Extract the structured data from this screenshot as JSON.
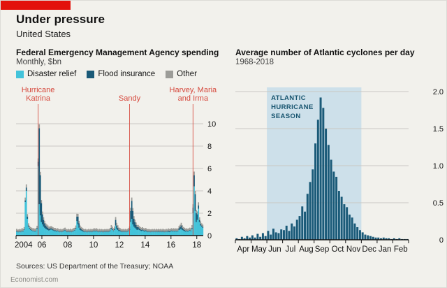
{
  "colors": {
    "background": "#f2f1ec",
    "brand_red": "#e3120b"
  },
  "header": {
    "title": "Under pressure",
    "subtitle": "United States"
  },
  "footer": {
    "sources": "Sources: US Department of the Treasury; NOAA",
    "site": "Economist.com"
  },
  "chart_data": [
    {
      "type": "bar",
      "stacked": true,
      "title": "Federal Emergency Management Agency spending",
      "subtitle": "Monthly, $bn",
      "x_note": "monthly values Jan 2004 - Jun 2018",
      "ylim": [
        0,
        10
      ],
      "yticks": [
        0,
        2,
        4,
        6,
        8,
        10
      ],
      "grid": true,
      "legend_position": "top",
      "annotation_color": "#d6483c",
      "xticks": [
        {
          "year": 2004,
          "label": "2004",
          "first": true
        },
        {
          "year": 2006,
          "label": "06"
        },
        {
          "year": 2008,
          "label": "08"
        },
        {
          "year": 2010,
          "label": "10"
        },
        {
          "year": 2012,
          "label": "12"
        },
        {
          "year": 2014,
          "label": "14"
        },
        {
          "year": 2016,
          "label": "16"
        },
        {
          "year": 2018,
          "label": "18"
        }
      ],
      "annotations": [
        {
          "label": "Hurricane Katrina",
          "lines": [
            "Hurricane",
            "Katrina"
          ],
          "x_year": 2005.7,
          "month_index": 20
        },
        {
          "label": "Sandy",
          "lines": [
            "Sandy"
          ],
          "x_year": 2012.8,
          "month_index": 105
        },
        {
          "label": "Harvey, Maria and Irma",
          "lines": [
            "Harvey, Maria",
            "and Irma"
          ],
          "x_year": 2017.7,
          "month_index": 164
        }
      ],
      "series": [
        {
          "name": "Disaster relief",
          "color": "#43c3da",
          "values": [
            0.35,
            0.3,
            0.3,
            0.35,
            0.3,
            0.4,
            0.35,
            0.5,
            3.0,
            4.0,
            1.5,
            0.8,
            0.6,
            0.5,
            0.45,
            0.4,
            0.4,
            0.35,
            0.4,
            0.6,
            6.2,
            2.8,
            1.8,
            1.2,
            1.0,
            0.8,
            0.7,
            0.6,
            0.55,
            0.5,
            0.45,
            0.5,
            0.55,
            0.5,
            0.45,
            0.4,
            0.4,
            0.35,
            0.4,
            0.35,
            0.3,
            0.35,
            0.3,
            0.35,
            0.4,
            0.45,
            0.35,
            0.3,
            0.35,
            0.3,
            0.35,
            0.3,
            0.35,
            0.4,
            0.45,
            0.6,
            1.3,
            1.0,
            0.7,
            0.5,
            0.45,
            0.4,
            0.35,
            0.3,
            0.35,
            0.3,
            0.3,
            0.35,
            0.3,
            0.35,
            0.3,
            0.35,
            0.4,
            0.35,
            0.4,
            0.35,
            0.3,
            0.35,
            0.3,
            0.35,
            0.3,
            0.3,
            0.35,
            0.3,
            0.35,
            0.3,
            0.35,
            0.4,
            0.6,
            0.5,
            0.4,
            0.5,
            0.9,
            0.6,
            0.5,
            0.4,
            0.4,
            0.35,
            0.3,
            0.35,
            0.3,
            0.35,
            0.3,
            0.35,
            0.4,
            0.5,
            1.2,
            1.5,
            1.0,
            0.8,
            0.7,
            0.6,
            0.5,
            0.55,
            0.5,
            0.45,
            0.4,
            0.45,
            0.4,
            0.35,
            0.4,
            0.35,
            0.3,
            0.35,
            0.3,
            0.3,
            0.35,
            0.3,
            0.35,
            0.3,
            0.35,
            0.3,
            0.35,
            0.3,
            0.35,
            0.3,
            0.35,
            0.3,
            0.3,
            0.35,
            0.3,
            0.35,
            0.3,
            0.35,
            0.4,
            0.35,
            0.4,
            0.35,
            0.4,
            0.35,
            0.4,
            0.5,
            0.55,
            0.6,
            0.5,
            0.45,
            0.4,
            0.35,
            0.4,
            0.35,
            0.4,
            0.45,
            0.4,
            0.6,
            2.0,
            4.4,
            2.2,
            1.2,
            1.4,
            2.4,
            1.2,
            0.9,
            0.8,
            0.7
          ]
        },
        {
          "name": "Flood insurance",
          "color": "#1a5a78",
          "values": [
            0.05,
            0.05,
            0.05,
            0.05,
            0.05,
            0.05,
            0.05,
            0.05,
            0.15,
            0.3,
            0.2,
            0.1,
            0.08,
            0.06,
            0.05,
            0.05,
            0.05,
            0.05,
            0.05,
            0.08,
            0.4,
            6.8,
            3.6,
            1.7,
            0.9,
            0.6,
            0.4,
            0.3,
            0.25,
            0.2,
            0.15,
            0.12,
            0.1,
            0.1,
            0.08,
            0.08,
            0.08,
            0.06,
            0.06,
            0.05,
            0.05,
            0.05,
            0.05,
            0.05,
            0.06,
            0.06,
            0.05,
            0.05,
            0.05,
            0.05,
            0.05,
            0.05,
            0.05,
            0.05,
            0.05,
            0.08,
            0.4,
            0.7,
            0.4,
            0.2,
            0.12,
            0.1,
            0.08,
            0.06,
            0.05,
            0.05,
            0.05,
            0.05,
            0.05,
            0.05,
            0.05,
            0.05,
            0.06,
            0.05,
            0.06,
            0.05,
            0.05,
            0.05,
            0.05,
            0.05,
            0.05,
            0.05,
            0.05,
            0.05,
            0.05,
            0.05,
            0.05,
            0.06,
            0.1,
            0.08,
            0.06,
            0.1,
            0.5,
            0.3,
            0.2,
            0.12,
            0.08,
            0.06,
            0.05,
            0.05,
            0.05,
            0.05,
            0.05,
            0.05,
            0.06,
            0.1,
            1.0,
            1.6,
            1.2,
            0.7,
            0.5,
            0.35,
            0.25,
            0.2,
            0.15,
            0.12,
            0.1,
            0.1,
            0.08,
            0.08,
            0.08,
            0.06,
            0.06,
            0.05,
            0.05,
            0.05,
            0.05,
            0.05,
            0.05,
            0.05,
            0.05,
            0.05,
            0.06,
            0.05,
            0.05,
            0.05,
            0.06,
            0.05,
            0.05,
            0.05,
            0.05,
            0.1,
            0.08,
            0.06,
            0.06,
            0.05,
            0.05,
            0.05,
            0.05,
            0.05,
            0.05,
            0.15,
            0.2,
            0.3,
            0.2,
            0.12,
            0.1,
            0.08,
            0.06,
            0.06,
            0.05,
            0.05,
            0.05,
            0.1,
            0.5,
            1.0,
            1.5,
            0.8,
            0.5,
            0.3,
            0.2,
            0.15,
            0.1,
            0.08
          ]
        },
        {
          "name": "Other",
          "color": "#9c9c98",
          "values": [
            0.2,
            0.18,
            0.2,
            0.19,
            0.2,
            0.22,
            0.2,
            0.21,
            0.25,
            0.28,
            0.22,
            0.2,
            0.2,
            0.19,
            0.2,
            0.2,
            0.21,
            0.2,
            0.22,
            0.2,
            0.3,
            0.35,
            0.3,
            0.28,
            0.25,
            0.24,
            0.22,
            0.2,
            0.2,
            0.21,
            0.2,
            0.2,
            0.2,
            0.19,
            0.2,
            0.2,
            0.2,
            0.19,
            0.2,
            0.2,
            0.21,
            0.2,
            0.2,
            0.19,
            0.2,
            0.2,
            0.19,
            0.2,
            0.2,
            0.2,
            0.21,
            0.2,
            0.2,
            0.22,
            0.2,
            0.22,
            0.25,
            0.24,
            0.22,
            0.2,
            0.2,
            0.2,
            0.19,
            0.2,
            0.2,
            0.19,
            0.2,
            0.2,
            0.19,
            0.2,
            0.2,
            0.19,
            0.2,
            0.21,
            0.2,
            0.2,
            0.19,
            0.2,
            0.2,
            0.19,
            0.2,
            0.2,
            0.19,
            0.2,
            0.2,
            0.2,
            0.21,
            0.22,
            0.24,
            0.22,
            0.2,
            0.22,
            0.26,
            0.24,
            0.22,
            0.2,
            0.2,
            0.19,
            0.2,
            0.2,
            0.19,
            0.2,
            0.2,
            0.2,
            0.21,
            0.22,
            0.28,
            0.3,
            0.26,
            0.24,
            0.22,
            0.22,
            0.2,
            0.2,
            0.2,
            0.19,
            0.2,
            0.2,
            0.19,
            0.2,
            0.2,
            0.19,
            0.2,
            0.19,
            0.2,
            0.2,
            0.19,
            0.2,
            0.2,
            0.19,
            0.2,
            0.2,
            0.19,
            0.2,
            0.2,
            0.19,
            0.2,
            0.2,
            0.19,
            0.2,
            0.2,
            0.19,
            0.2,
            0.2,
            0.2,
            0.2,
            0.21,
            0.2,
            0.2,
            0.21,
            0.2,
            0.22,
            0.22,
            0.24,
            0.22,
            0.2,
            0.2,
            0.2,
            0.19,
            0.2,
            0.2,
            0.21,
            0.2,
            0.24,
            0.3,
            0.32,
            0.3,
            0.28,
            0.26,
            0.28,
            0.24,
            0.22,
            0.2,
            0.2
          ]
        }
      ]
    },
    {
      "type": "bar",
      "title": "Average number of Atlantic cyclones per day",
      "subtitle": "1968-2018",
      "months": [
        "Apr",
        "May",
        "Jun",
        "Jul",
        "Aug",
        "Sep",
        "Oct",
        "Nov",
        "Dec",
        "Jan",
        "Feb"
      ],
      "bins_per_month": 6,
      "ylim": [
        0,
        2
      ],
      "yticks": [
        0,
        0.5,
        1.0,
        1.5,
        2.0
      ],
      "ytick_labels": [
        "0",
        "0.5",
        "1.0",
        "1.5",
        "2.0"
      ],
      "grid": true,
      "bar_color": "#1a5a78",
      "band": {
        "label_lines": [
          "ATLANTIC",
          "HURRICANE",
          "SEASON"
        ],
        "from_month": "Jun",
        "to_month": "Nov",
        "from_index": 2,
        "to_index": 7,
        "color": "#cde0ea",
        "text_color": "#17546f"
      },
      "values": [
        0.02,
        0.01,
        0.04,
        0.02,
        0.05,
        0.03,
        0.06,
        0.03,
        0.08,
        0.04,
        0.09,
        0.05,
        0.12,
        0.07,
        0.15,
        0.1,
        0.09,
        0.14,
        0.13,
        0.19,
        0.12,
        0.22,
        0.18,
        0.27,
        0.32,
        0.45,
        0.38,
        0.62,
        0.78,
        0.95,
        1.3,
        1.62,
        1.92,
        1.78,
        1.5,
        1.28,
        1.08,
        0.92,
        0.85,
        0.66,
        0.58,
        0.48,
        0.44,
        0.34,
        0.3,
        0.22,
        0.17,
        0.13,
        0.1,
        0.07,
        0.06,
        0.05,
        0.04,
        0.03,
        0.03,
        0.02,
        0.03,
        0.02,
        0.02,
        0.01,
        0.02,
        0.01,
        0.02,
        0.01,
        0.01,
        0.01
      ]
    }
  ]
}
